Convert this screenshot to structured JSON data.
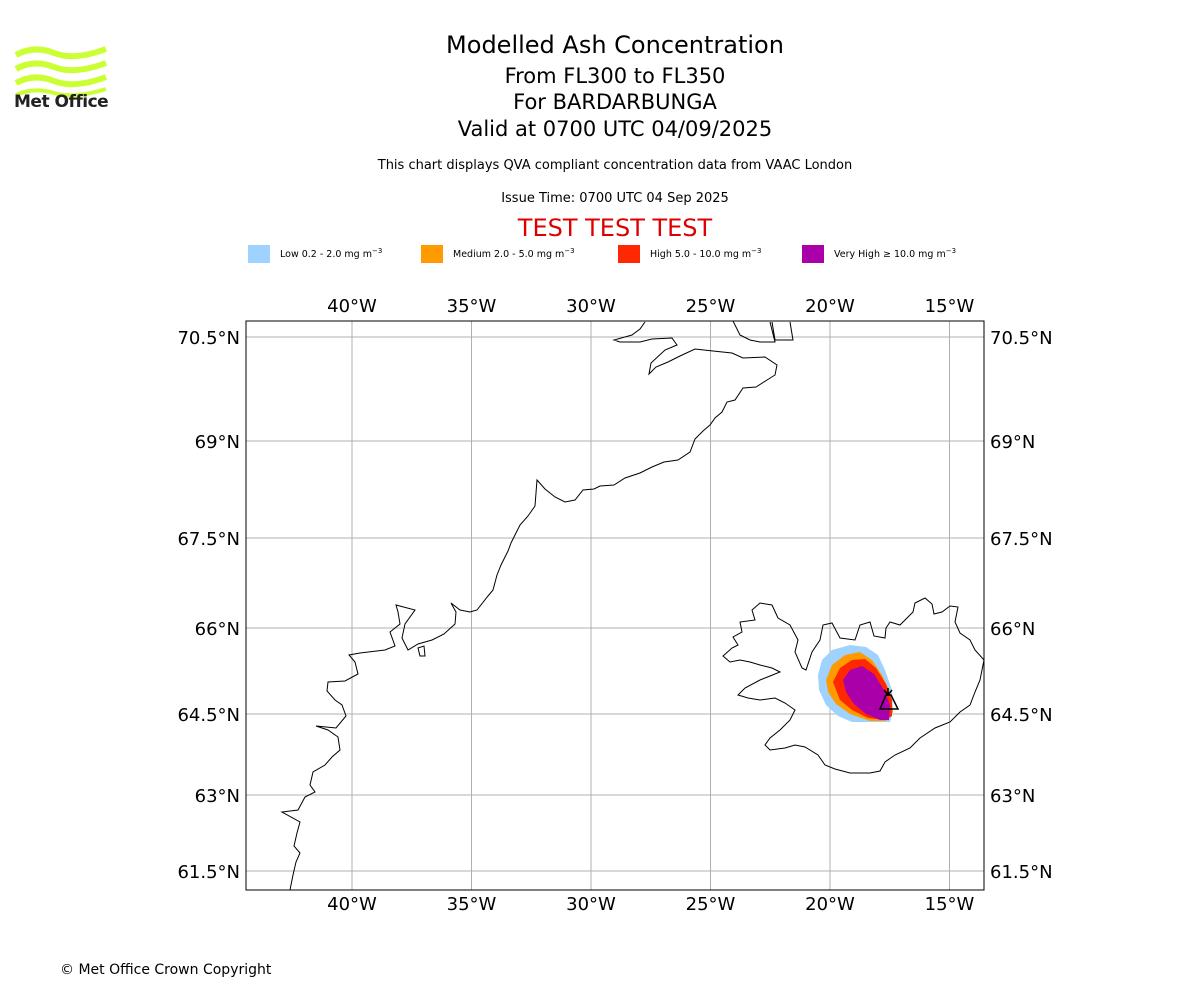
{
  "logo": {
    "text": "Met Office",
    "color": "#ccff33"
  },
  "title": {
    "main": "Modelled Ash Concentration",
    "levels": "From FL300 to FL350",
    "volcano": "For BARDARBUNGA",
    "valid": "Valid at 0700 UTC 04/09/2025",
    "description": "This chart displays QVA compliant concentration data from VAAC London",
    "issue_time": "Issue Time: 0700 UTC 04 Sep 2025",
    "test_banner": "TEST TEST TEST",
    "test_banner_color": "#dd0000"
  },
  "legend": [
    {
      "label": "Low 0.2 - 2.0 mg m",
      "color": "#a0d2ff"
    },
    {
      "label": "Medium 2.0 - 5.0 mg m",
      "color": "#ff9b00"
    },
    {
      "label": "High 5.0 - 10.0 mg m",
      "color": "#ff2800"
    },
    {
      "label": "Very High ≥ 10.0 mg m",
      "color": "#aa00aa"
    }
  ],
  "legend_unit_exponent": "−3",
  "map": {
    "projection": "plate-carree",
    "lon_range": [
      -44.4,
      -13.6
    ],
    "lat_range": [
      61.2,
      70.7
    ],
    "lon_ticks": [
      {
        "value": -40,
        "label": "40°W"
      },
      {
        "value": -35,
        "label": "35°W"
      },
      {
        "value": -30,
        "label": "30°W"
      },
      {
        "value": -25,
        "label": "25°W"
      },
      {
        "value": -20,
        "label": "20°W"
      },
      {
        "value": -15,
        "label": "15°W"
      }
    ],
    "lat_ticks": [
      {
        "value": 70.5,
        "label": "70.5°N"
      },
      {
        "value": 69,
        "label": "69°N"
      },
      {
        "value": 67.5,
        "label": "67.5°N"
      },
      {
        "value": 66,
        "label": "66°N"
      },
      {
        "value": 64.5,
        "label": "64.5°N"
      },
      {
        "value": 63,
        "label": "63°N"
      },
      {
        "value": 61.5,
        "label": "61.5°N"
      }
    ],
    "grid": true,
    "volcano_marker": {
      "name": "BARDARBUNGA",
      "lon": -17.5,
      "lat": 64.6
    }
  },
  "copyright": "© Met Office Crown Copyright"
}
